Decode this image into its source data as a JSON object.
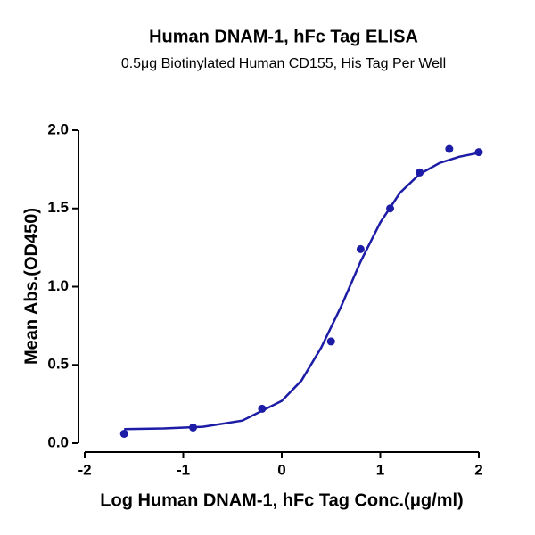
{
  "chart_data": {
    "type": "scatter",
    "title": "Human DNAM-1, hFc Tag ELISA",
    "subtitle": "0.5μg Biotinylated Human CD155, His Tag Per Well",
    "x_label": "Log Human DNAM-1, hFc Tag Conc.(μg/ml)",
    "y_label": "Mean Abs.(OD450)",
    "xlim": [
      -2,
      2
    ],
    "ylim": [
      0,
      2
    ],
    "xticks": [
      -2,
      -1,
      0,
      1,
      2
    ],
    "yticks": [
      {
        "value": 0,
        "label": "0.0"
      },
      0.5,
      {
        "value": 1,
        "label": "1.0"
      },
      1.5,
      {
        "value": 2,
        "label": "2.0"
      }
    ],
    "color": "#1c1ca6",
    "series": [
      {
        "style": "points",
        "x": [
          -1.6,
          -0.9,
          -0.2,
          0.5,
          0.8,
          1.1,
          1.4,
          1.7,
          2.0
        ],
        "values": [
          0.06,
          0.1,
          0.22,
          0.65,
          1.24,
          1.5,
          1.73,
          1.88,
          1.86
        ]
      },
      {
        "style": "line",
        "x": [
          -1.6,
          -1.2,
          -0.8,
          -0.4,
          0,
          0.2,
          0.4,
          0.6,
          0.8,
          1.0,
          1.2,
          1.4,
          1.6,
          1.8,
          2.0
        ],
        "values": [
          0.09,
          0.094,
          0.105,
          0.144,
          0.27,
          0.4,
          0.61,
          0.87,
          1.16,
          1.41,
          1.6,
          1.72,
          1.79,
          1.83,
          1.855
        ]
      }
    ]
  }
}
